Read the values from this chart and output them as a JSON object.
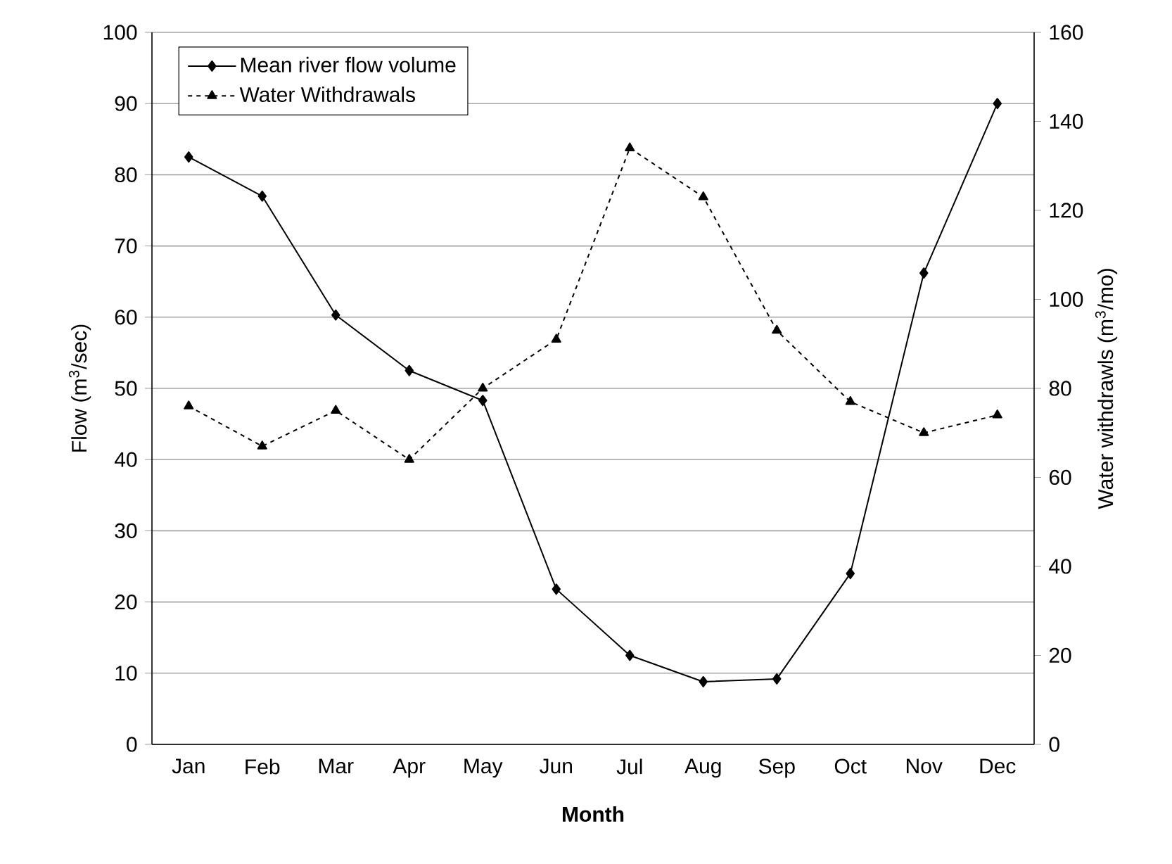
{
  "chart_data": {
    "type": "line",
    "xlabel": "Month",
    "ylabel": "Flow (m$^{3}$/sec)",
    "y2label": "Water withdrawls (m$^{3}$/mo)",
    "categories": [
      "Jan",
      "Feb",
      "Mar",
      "Apr",
      "May",
      "Jun",
      "Jul",
      "Aug",
      "Sep",
      "Oct",
      "Nov",
      "Dec"
    ],
    "series": [
      {
        "name": "Mean river flow volume",
        "color": "#000000",
        "marker": "diamond",
        "line_style": "solid",
        "values": [
          82.5,
          77,
          60.3,
          52.5,
          48.3,
          21.8,
          12.5,
          8.8,
          9.2,
          24,
          66.2,
          90
        ]
      },
      {
        "name": "Water Withdrawals",
        "color": "#000000",
        "marker": "triangle",
        "line_style": "dashed",
        "axis": "y2",
        "values": [
          76,
          67,
          75,
          64,
          80,
          91,
          134,
          123,
          93,
          77,
          70,
          74
        ]
      }
    ],
    "ylim": [
      0,
      100
    ],
    "yticks": [
      0,
      10,
      20,
      30,
      40,
      50,
      60,
      70,
      80,
      90,
      100
    ],
    "y2lim": [
      0,
      160
    ],
    "y2ticks": [
      0,
      20,
      40,
      60,
      80,
      100,
      120,
      140,
      160
    ],
    "grid": "y",
    "legend": "top left"
  }
}
